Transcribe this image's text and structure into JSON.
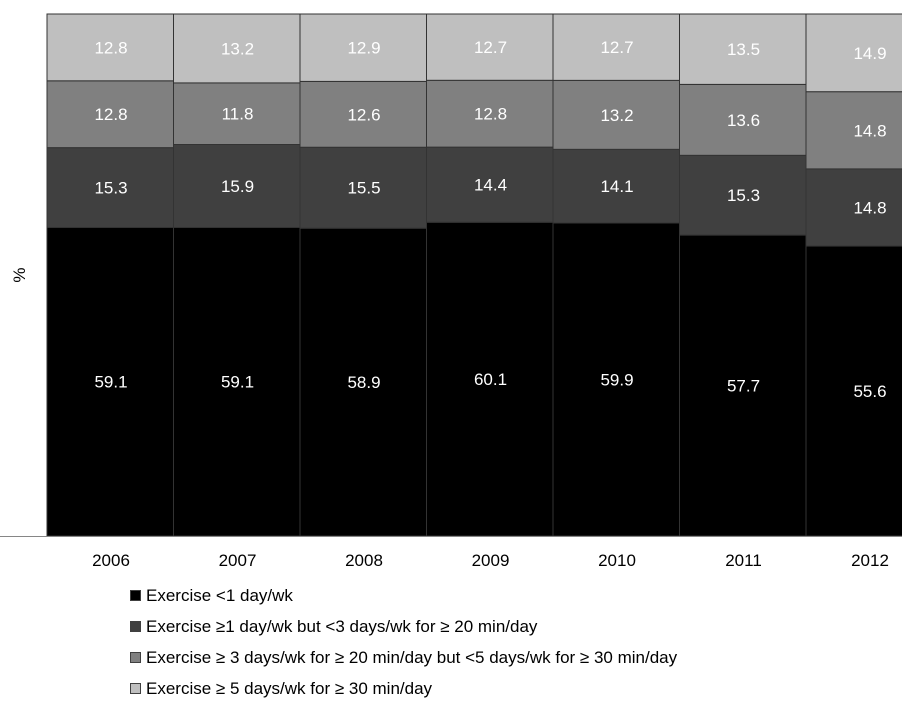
{
  "chart_data": {
    "type": "bar",
    "stacked": true,
    "normalized_to_100": true,
    "title": "",
    "xlabel": "",
    "ylabel": "%",
    "ylim": [
      0,
      100
    ],
    "grid": false,
    "legend_position": "bottom",
    "categories": [
      "2006",
      "2007",
      "2008",
      "2009",
      "2010",
      "2011",
      "2012"
    ],
    "series": [
      {
        "name": "Exercise <1 day/wk",
        "color": "#000000",
        "label_color": "#ffffff",
        "values": [
          59.1,
          59.1,
          58.9,
          60.1,
          59.9,
          57.7,
          55.6
        ]
      },
      {
        "name": "Exercise ≥1 day/wk but <3 days/wk for ≥ 20 min/day",
        "color": "#404040",
        "label_color": "#ffffff",
        "values": [
          15.3,
          15.9,
          15.5,
          14.4,
          14.1,
          15.3,
          14.8
        ]
      },
      {
        "name": "Exercise ≥ 3 days/wk for ≥ 20 min/day but <5 days/wk for ≥ 30 min/day",
        "color": "#808080",
        "label_color": "#ffffff",
        "values": [
          12.8,
          11.8,
          12.6,
          12.8,
          13.2,
          13.6,
          14.8
        ]
      },
      {
        "name": "Exercise ≥ 5 days/wk for ≥ 30 min/day",
        "color": "#bfbfbf",
        "label_color": "#ffffff",
        "values": [
          12.8,
          13.2,
          12.9,
          12.7,
          12.7,
          13.5,
          14.9
        ]
      }
    ]
  }
}
